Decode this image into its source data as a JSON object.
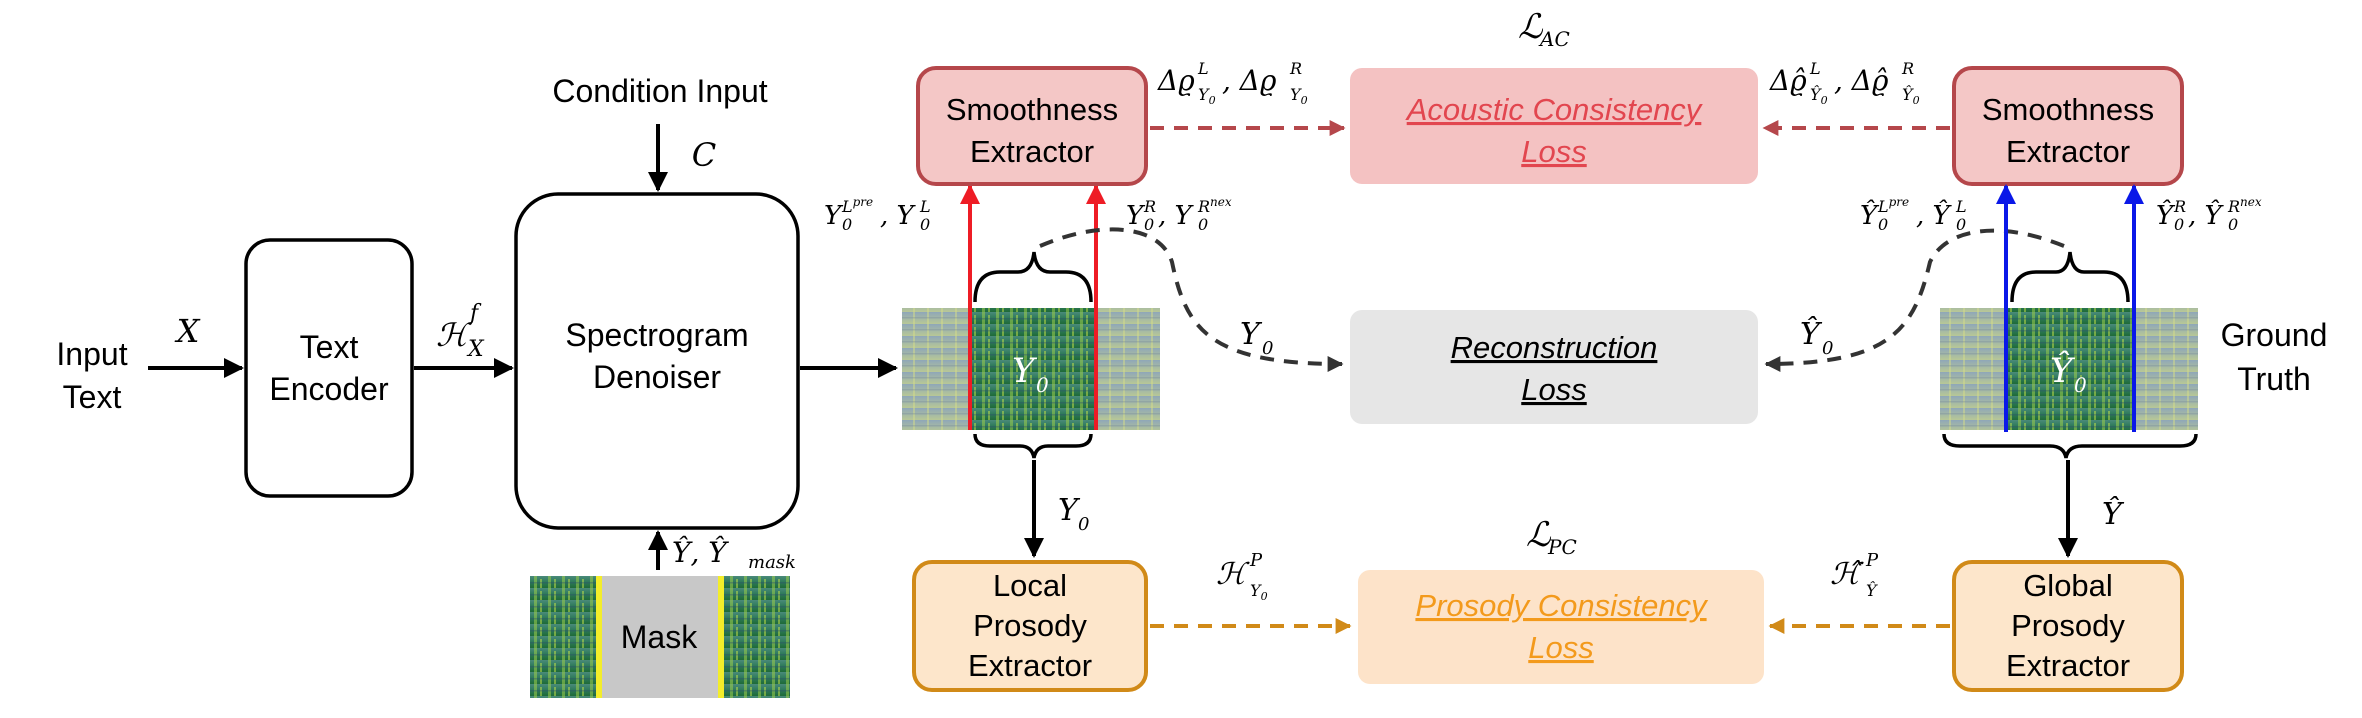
{
  "labels": {
    "input_text_line1": "Input",
    "input_text_line2": "Text",
    "x_var": "X",
    "text_encoder_line1": "Text",
    "text_encoder_line2": "Encoder",
    "h_x_f": "ℋ",
    "h_x_f_sup": "f",
    "h_x_f_sub": "X",
    "condition_input": "Condition Input",
    "c_var": "C",
    "spectrogram_line1": "Spectrogram",
    "spectrogram_line2": "Denoiser",
    "y_hat_mask_label": "Ŷ, Ŷ",
    "y_hat_mask_sub": "mask",
    "mask_label": "Mask",
    "y0_center": "Y",
    "y0_center_sub": "0",
    "y0_down": "Y",
    "y0_down_sub": "0",
    "smooth_left_line1": "Smoothness",
    "smooth_left_line2": "Extractor",
    "smooth_right_line1": "Smoothness",
    "smooth_right_line2": "Extractor",
    "delta_left": "Δϱ",
    "delta_right": "Δϱ̂",
    "lac": "ℒ",
    "lac_sub": "AC",
    "acoustic_line1": "Acoustic Consistency",
    "acoustic_line2": "Loss",
    "recon_line1": "Reconstruction",
    "recon_line2": "Loss",
    "y0_recon": "Y",
    "y0_recon_sub": "0",
    "yhat0_recon": "Ŷ",
    "yhat0_recon_sub": "0",
    "y0_lpre_left": "Y",
    "y0_r_left": "Y",
    "yhat_lpre_right": "Ŷ",
    "yhat_r_right": "Ŷ",
    "ground_truth_line1": "Ground",
    "ground_truth_line2": "Truth",
    "yhat_center": "Ŷ",
    "yhat_center_sub": "0",
    "yhat_down": "Ŷ",
    "local_line1": "Local",
    "local_line2": "Prosody",
    "local_line3": "Extractor",
    "global_line1": "Global",
    "global_line2": "Prosody",
    "global_line3": "Extractor",
    "hp_left": "ℋ",
    "hp_right": "ℋ̂",
    "lpc": "ℒ",
    "lpc_sub": "PC",
    "prosody_line1": "Prosody Consistency",
    "prosody_line2": "Loss"
  },
  "colors": {
    "red_box_fill": "#f4c7c6",
    "red_box_stroke": "#b5474b",
    "red_loss_fill": "#f4c2c2",
    "red_text": "#e2464f",
    "orange_box_fill": "#fde6cb",
    "orange_box_stroke": "#d18a18",
    "orange_loss_fill": "#fde3c9",
    "orange_text": "#f39a1c",
    "gray_loss_fill": "#e6e6e6",
    "red_line": "#ee1c25",
    "blue_line": "#0a18e8",
    "mask_yellow": "#f3ed2a"
  }
}
